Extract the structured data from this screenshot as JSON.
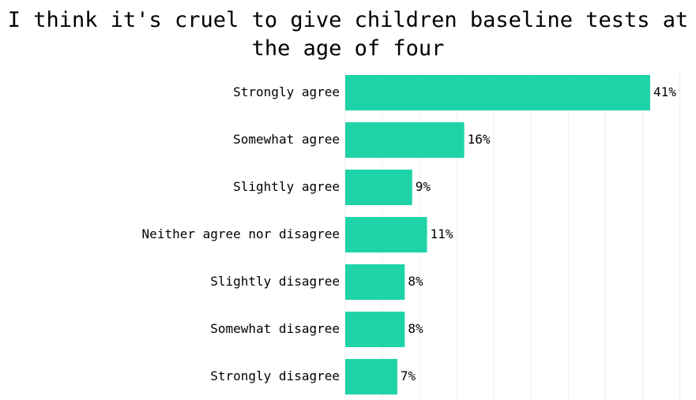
{
  "chart_data": {
    "type": "bar",
    "orientation": "horizontal",
    "title": "I think it's cruel to give children baseline tests at the age of four",
    "categories": [
      "Strongly agree",
      "Somewhat agree",
      "Slightly agree",
      "Neither agree nor disagree",
      "Slightly disagree",
      "Somewhat disagree",
      "Strongly disagree"
    ],
    "values": [
      41,
      16,
      9,
      11,
      8,
      8,
      7
    ],
    "value_labels": [
      "41%",
      "16%",
      "9%",
      "11%",
      "8%",
      "8%",
      "7%"
    ],
    "value_suffix": "%",
    "xlim": [
      0,
      45
    ],
    "xlabel": "",
    "ylabel": "",
    "grid": true,
    "bar_color": "#1fd3a8"
  }
}
